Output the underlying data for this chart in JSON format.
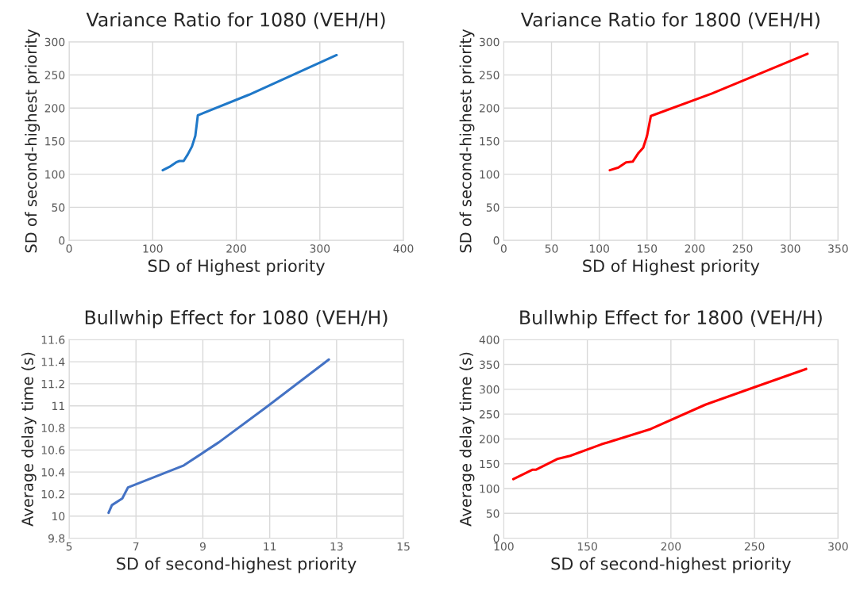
{
  "chart_data": [
    {
      "type": "line",
      "title": "Variance Ratio for 1080 (VEH/H)",
      "xlabel": "SD of Highest priority",
      "ylabel": "SD of second-highest priority",
      "xlim": [
        0,
        400
      ],
      "xticks": [
        0,
        100,
        200,
        300,
        400
      ],
      "ylim": [
        0,
        300
      ],
      "yticks": [
        0,
        50,
        100,
        150,
        200,
        250,
        300
      ],
      "grid": true,
      "series": [
        {
          "color": "#1f78c8",
          "x": [
            112,
            120,
            128,
            132,
            137,
            142,
            147,
            151,
            154,
            215,
            320
          ],
          "values": [
            106,
            111,
            118,
            120,
            120,
            130,
            142,
            158,
            189,
            220,
            280
          ]
        }
      ]
    },
    {
      "type": "line",
      "title": "Variance Ratio for 1800 (VEH/H)",
      "xlabel": "SD of Highest priority",
      "ylabel": "SD of second-highest priority",
      "xlim": [
        0,
        350
      ],
      "xticks": [
        0,
        50,
        100,
        150,
        200,
        250,
        300,
        350
      ],
      "ylim": [
        0,
        300
      ],
      "yticks": [
        0,
        50,
        100,
        150,
        200,
        250,
        300
      ],
      "grid": true,
      "series": [
        {
          "color": "#ff0000",
          "x": [
            111,
            120,
            128,
            135,
            141,
            146,
            150,
            154,
            218,
            318
          ],
          "values": [
            106,
            110,
            118,
            119,
            132,
            140,
            158,
            188,
            222,
            282
          ]
        }
      ]
    },
    {
      "type": "line",
      "title": "Bullwhip Effect for 1080 (VEH/H)",
      "xlabel": "SD of second-highest priority",
      "ylabel": "Average delay time (s)",
      "xlim": [
        5,
        15
      ],
      "xticks": [
        5,
        7,
        9,
        11,
        13,
        15
      ],
      "ylim": [
        9.8,
        11.6
      ],
      "yticks": [
        {
          "value": 9.8,
          "label": "9.8"
        },
        {
          "value": 10,
          "label": "10"
        },
        {
          "value": 10.2,
          "label": "10.2"
        },
        {
          "value": 10.4,
          "label": "10.4"
        },
        {
          "value": 10.6,
          "label": "10.6"
        },
        {
          "value": 10.8,
          "label": "10.8"
        },
        {
          "value": 11,
          "label": "11"
        },
        {
          "value": 11.2,
          "label": "11.2"
        },
        {
          "value": 11.4,
          "label": "11.4"
        },
        {
          "value": 11.6,
          "label": "11.6"
        }
      ],
      "grid": true,
      "series": [
        {
          "color": "#4472c4",
          "x": [
            6.18,
            6.28,
            6.59,
            6.76,
            8.43,
            9.48,
            10.95,
            12.77
          ],
          "values": [
            10.03,
            10.1,
            10.16,
            10.26,
            10.46,
            10.67,
            11.0,
            11.42
          ]
        }
      ]
    },
    {
      "type": "line",
      "title": "Bullwhip Effect for 1800 (VEH/H)",
      "xlabel": "SD of second-highest priority",
      "ylabel": "Average delay time (s)",
      "xlim": [
        100,
        300
      ],
      "xticks": [
        100,
        150,
        200,
        250,
        300
      ],
      "ylim": [
        0,
        400
      ],
      "yticks": [
        0,
        50,
        100,
        150,
        200,
        250,
        300,
        350,
        400
      ],
      "grid": true,
      "series": [
        {
          "color": "#ff0000",
          "x": [
            105.7,
            117.3,
            119.4,
            132.4,
            139.7,
            158.3,
            187.9,
            220.6,
            250.6,
            280.9
          ],
          "values": [
            119,
            138,
            138,
            160,
            166,
            189,
            220,
            269,
            305,
            341
          ]
        }
      ]
    }
  ]
}
